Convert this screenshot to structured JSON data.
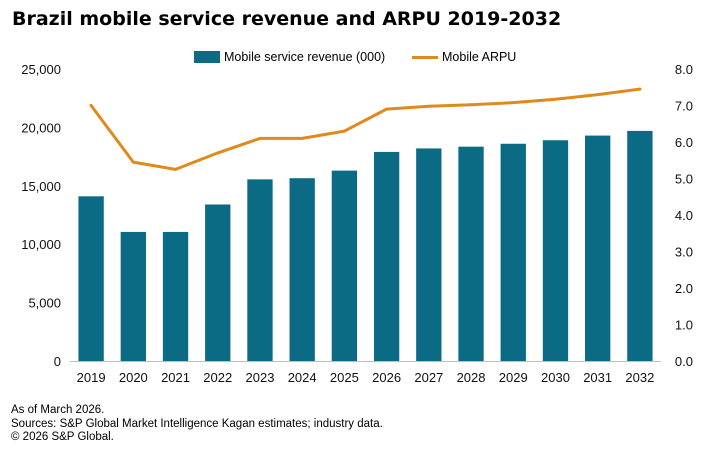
{
  "title": "Brazil mobile service revenue and ARPU 2019-2032",
  "colors": {
    "bar": "#0b6b85",
    "line": "#e08a1e",
    "axis": "#bfbfbf"
  },
  "chart_data": {
    "type": "bar",
    "title": "Brazil mobile service revenue and ARPU 2019-2032",
    "categories": [
      "2019",
      "2020",
      "2021",
      "2022",
      "2023",
      "2024",
      "2025",
      "2026",
      "2027",
      "2028",
      "2029",
      "2030",
      "2031",
      "2032"
    ],
    "series": [
      {
        "name": "Mobile service revenue (000)",
        "type": "bar",
        "axis": "left",
        "values": [
          14100,
          11050,
          11050,
          13400,
          15550,
          15650,
          16300,
          17900,
          18200,
          18350,
          18600,
          18900,
          19300,
          19700
        ]
      },
      {
        "name": "Mobile ARPU",
        "type": "line",
        "axis": "right",
        "values": [
          7.0,
          5.45,
          5.25,
          5.7,
          6.1,
          6.1,
          6.3,
          6.9,
          6.98,
          7.02,
          7.08,
          7.17,
          7.3,
          7.45
        ]
      }
    ],
    "y_left": {
      "min": 0,
      "max": 25000,
      "ticks": [
        "0",
        "5,000",
        "10,000",
        "15,000",
        "20,000",
        "25,000"
      ]
    },
    "y_right": {
      "min": 0,
      "max": 8,
      "ticks": [
        "0.0",
        "1.0",
        "2.0",
        "3.0",
        "4.0",
        "5.0",
        "6.0",
        "7.0",
        "8.0"
      ]
    },
    "grid": false,
    "legend_position": "top-center"
  },
  "notes": [
    "As of March 2026.",
    "Sources: S&P Global Market Intelligence Kagan estimates; industry data.",
    "© 2026 S&P Global."
  ]
}
